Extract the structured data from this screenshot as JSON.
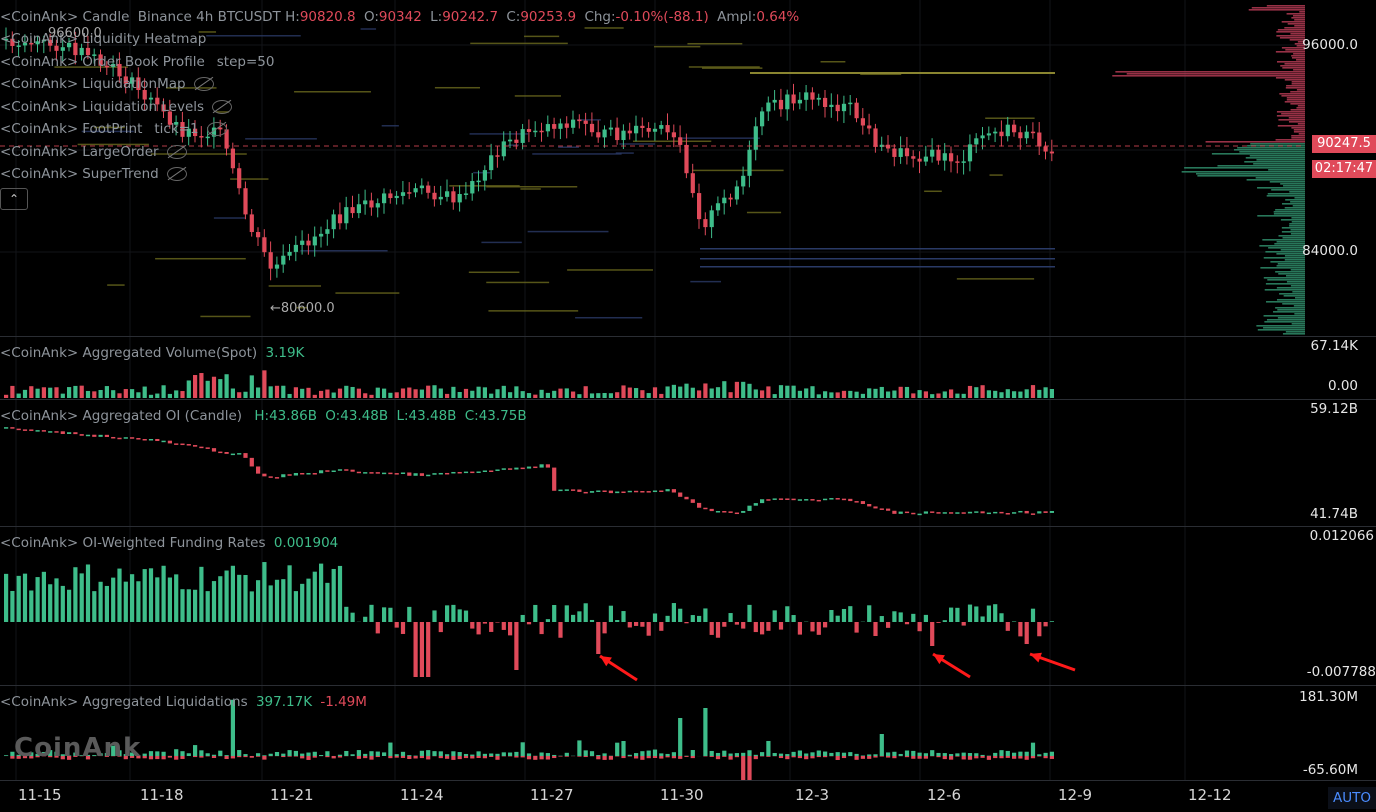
{
  "main_legend": {
    "prefix": "<CoinAnk>",
    "name": "Candle",
    "exchange": "Binance 4h BTCUSDT",
    "h_label": "H:",
    "h_val": "90820.8",
    "o_label": "O:",
    "o_val": "90342",
    "l_label": "L:",
    "l_val": "90242.7",
    "c_label": "C:",
    "c_val": "90253.9",
    "chg_label": "Chg:",
    "chg_val": "-0.10%(-88.1)",
    "ampl_label": "Ampl:",
    "ampl_val": "0.64%"
  },
  "overlays": [
    {
      "prefix": "<CoinAnk>",
      "name": "Liquidity Heatmap",
      "extra": "",
      "eye": false
    },
    {
      "prefix": "<CoinAnk>",
      "name": "Order Book Profile",
      "extra": "step=50",
      "eye": false
    },
    {
      "prefix": "<CoinAnk>",
      "name": "LiquidationMap",
      "extra": "",
      "eye": true
    },
    {
      "prefix": "<CoinAnk>",
      "name": "Liquidation Levels",
      "extra": "",
      "eye": true
    },
    {
      "prefix": "<CoinAnk>",
      "name": "FootPrint",
      "extra": "tick=1",
      "eye": true
    },
    {
      "prefix": "<CoinAnk>",
      "name": "LargeOrder",
      "extra": "",
      "eye": true
    },
    {
      "prefix": "<CoinAnk>",
      "name": "SuperTrend",
      "extra": "",
      "eye": true
    }
  ],
  "collapse_icon": "chevron-up-icon",
  "annot_high": "96600.0",
  "annot_low": "←80600.0",
  "price_axis": {
    "p96000": "96000.0",
    "p84000": "84000.0",
    "current": "90247.5",
    "countdown": "02:17:47"
  },
  "volume": {
    "prefix": "<CoinAnk>",
    "name": "Aggregated Volume(Spot)",
    "value": "3.19K",
    "axis_top": "67.14K",
    "axis_bottom": "0.00"
  },
  "oi": {
    "prefix": "<CoinAnk>",
    "name": "Aggregated OI (Candle)",
    "h": "H:43.86B",
    "o": "O:43.48B",
    "l": "L:43.48B",
    "c": "C:43.75B",
    "axis_top": "59.12B",
    "axis_bottom": "41.74B"
  },
  "funding": {
    "prefix": "<CoinAnk>",
    "name": "OI-Weighted Funding Rates",
    "value": "0.001904",
    "axis_top": "0.012066",
    "axis_bottom": "-0.007788"
  },
  "liq": {
    "prefix": "<CoinAnk>",
    "name": "Aggregated Liquidations",
    "long": "397.17K",
    "short": "-1.49M",
    "axis_top": "181.30M",
    "axis_bottom": "-65.60M"
  },
  "dates": [
    "11-15",
    "11-18",
    "11-21",
    "11-24",
    "11-27",
    "11-30",
    "12-3",
    "12-6",
    "12-9",
    "12-12"
  ],
  "auto_label": "AUTO",
  "watermark": "CoinAnk",
  "colors": {
    "up": "#3ebd8a",
    "down": "#e04a5a",
    "arrow": "#ff1a1a",
    "heat": "#d4cf3a"
  }
}
